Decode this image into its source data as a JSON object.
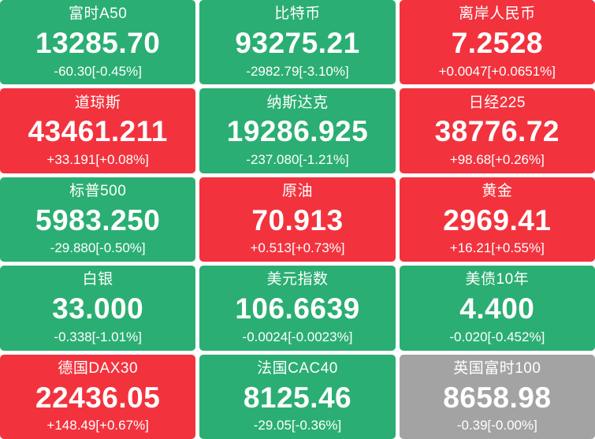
{
  "palette": {
    "green": "#2BAE73",
    "red": "#F2333E",
    "gray": "#A3A3A3",
    "page_background": "#FFFFFF",
    "text": "#FFFFFF"
  },
  "tiles": [
    {
      "name": "富时A50",
      "price": "13285.70",
      "change": "-60.30[-0.45%]",
      "trend": "green"
    },
    {
      "name": "比特币",
      "price": "93275.21",
      "change": "-2982.79[-3.10%]",
      "trend": "green"
    },
    {
      "name": "离岸人民币",
      "price": "7.2528",
      "change": "+0.0047[+0.0651%]",
      "trend": "red"
    },
    {
      "name": "道琼斯",
      "price": "43461.211",
      "change": "+33.191[+0.08%]",
      "trend": "red"
    },
    {
      "name": "纳斯达克",
      "price": "19286.925",
      "change": "-237.080[-1.21%]",
      "trend": "green"
    },
    {
      "name": "日经225",
      "price": "38776.72",
      "change": "+98.68[+0.26%]",
      "trend": "red"
    },
    {
      "name": "标普500",
      "price": "5983.250",
      "change": "-29.880[-0.50%]",
      "trend": "green"
    },
    {
      "name": "原油",
      "price": "70.913",
      "change": "+0.513[+0.73%]",
      "trend": "red"
    },
    {
      "name": "黄金",
      "price": "2969.41",
      "change": "+16.21[+0.55%]",
      "trend": "red"
    },
    {
      "name": "白银",
      "price": "33.000",
      "change": "-0.338[-1.01%]",
      "trend": "green"
    },
    {
      "name": "美元指数",
      "price": "106.6639",
      "change": "-0.0024[-0.0023%]",
      "trend": "green"
    },
    {
      "name": "美债10年",
      "price": "4.400",
      "change": "-0.020[-0.452%]",
      "trend": "green"
    },
    {
      "name": "德国DAX30",
      "price": "22436.05",
      "change": "+148.49[+0.67%]",
      "trend": "red"
    },
    {
      "name": "法国CAC40",
      "price": "8125.46",
      "change": "-29.05[-0.36%]",
      "trend": "green"
    },
    {
      "name": "英国富时100",
      "price": "8658.98",
      "change": "-0.39[-0.00%]",
      "trend": "gray"
    }
  ]
}
